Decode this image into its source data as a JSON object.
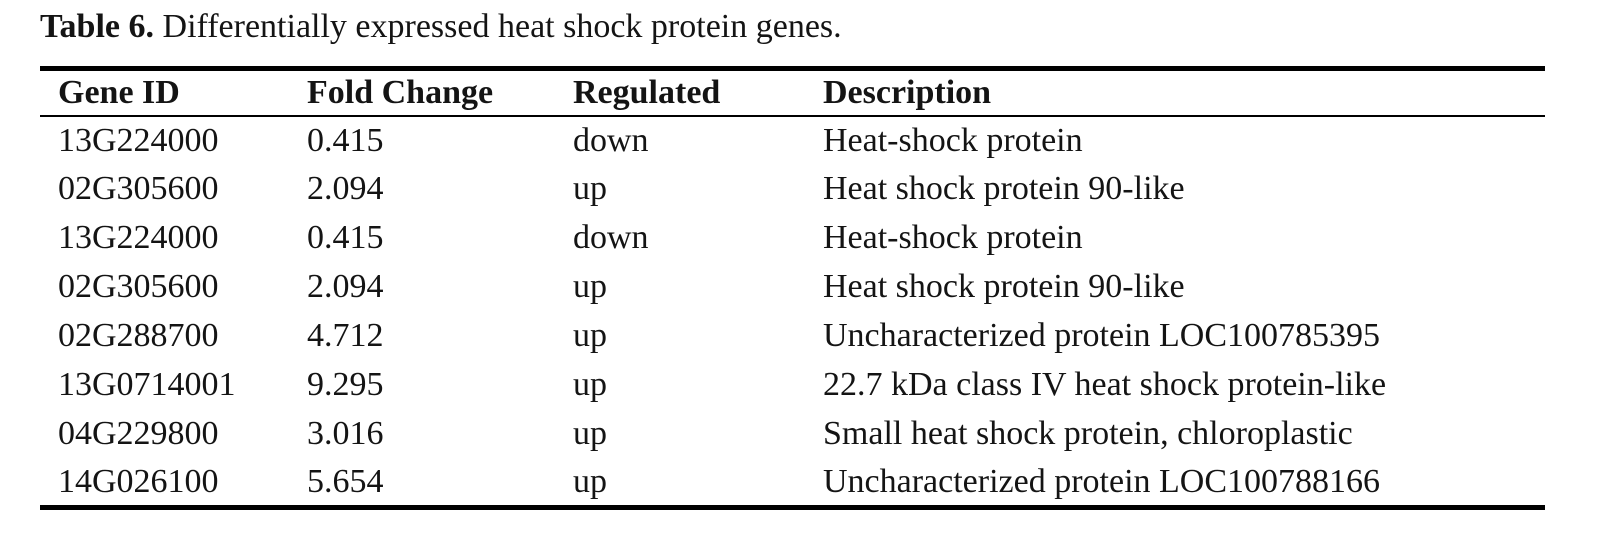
{
  "table": {
    "caption_label": "Table 6.",
    "caption_rest": "Differentially expressed heat shock protein genes.",
    "columns": [
      "Gene ID",
      "Fold Change",
      "Regulated",
      "Description"
    ],
    "column_keys": [
      "gene-id",
      "fold-change",
      "regulated",
      "description"
    ],
    "rows": [
      [
        "13G224000",
        "0.415",
        "down",
        "Heat-shock protein"
      ],
      [
        "02G305600",
        "2.094",
        "up",
        "Heat shock protein 90-like"
      ],
      [
        "13G224000",
        "0.415",
        "down",
        "Heat-shock protein"
      ],
      [
        "02G305600",
        "2.094",
        "up",
        "Heat shock protein 90-like"
      ],
      [
        "02G288700",
        "4.712",
        "up",
        "Uncharacterized protein LOC100785395"
      ],
      [
        "13G0714001",
        "9.295",
        "up",
        "22.7 kDa class IV heat shock protein-like"
      ],
      [
        "04G229800",
        "3.016",
        "up",
        "Small heat shock protein, chloroplastic"
      ],
      [
        "14G026100",
        "5.654",
        "up",
        "Uncharacterized protein LOC100788166"
      ]
    ],
    "colors": {
      "text": "#141414",
      "rule": "#000000",
      "background": "#ffffff"
    }
  }
}
